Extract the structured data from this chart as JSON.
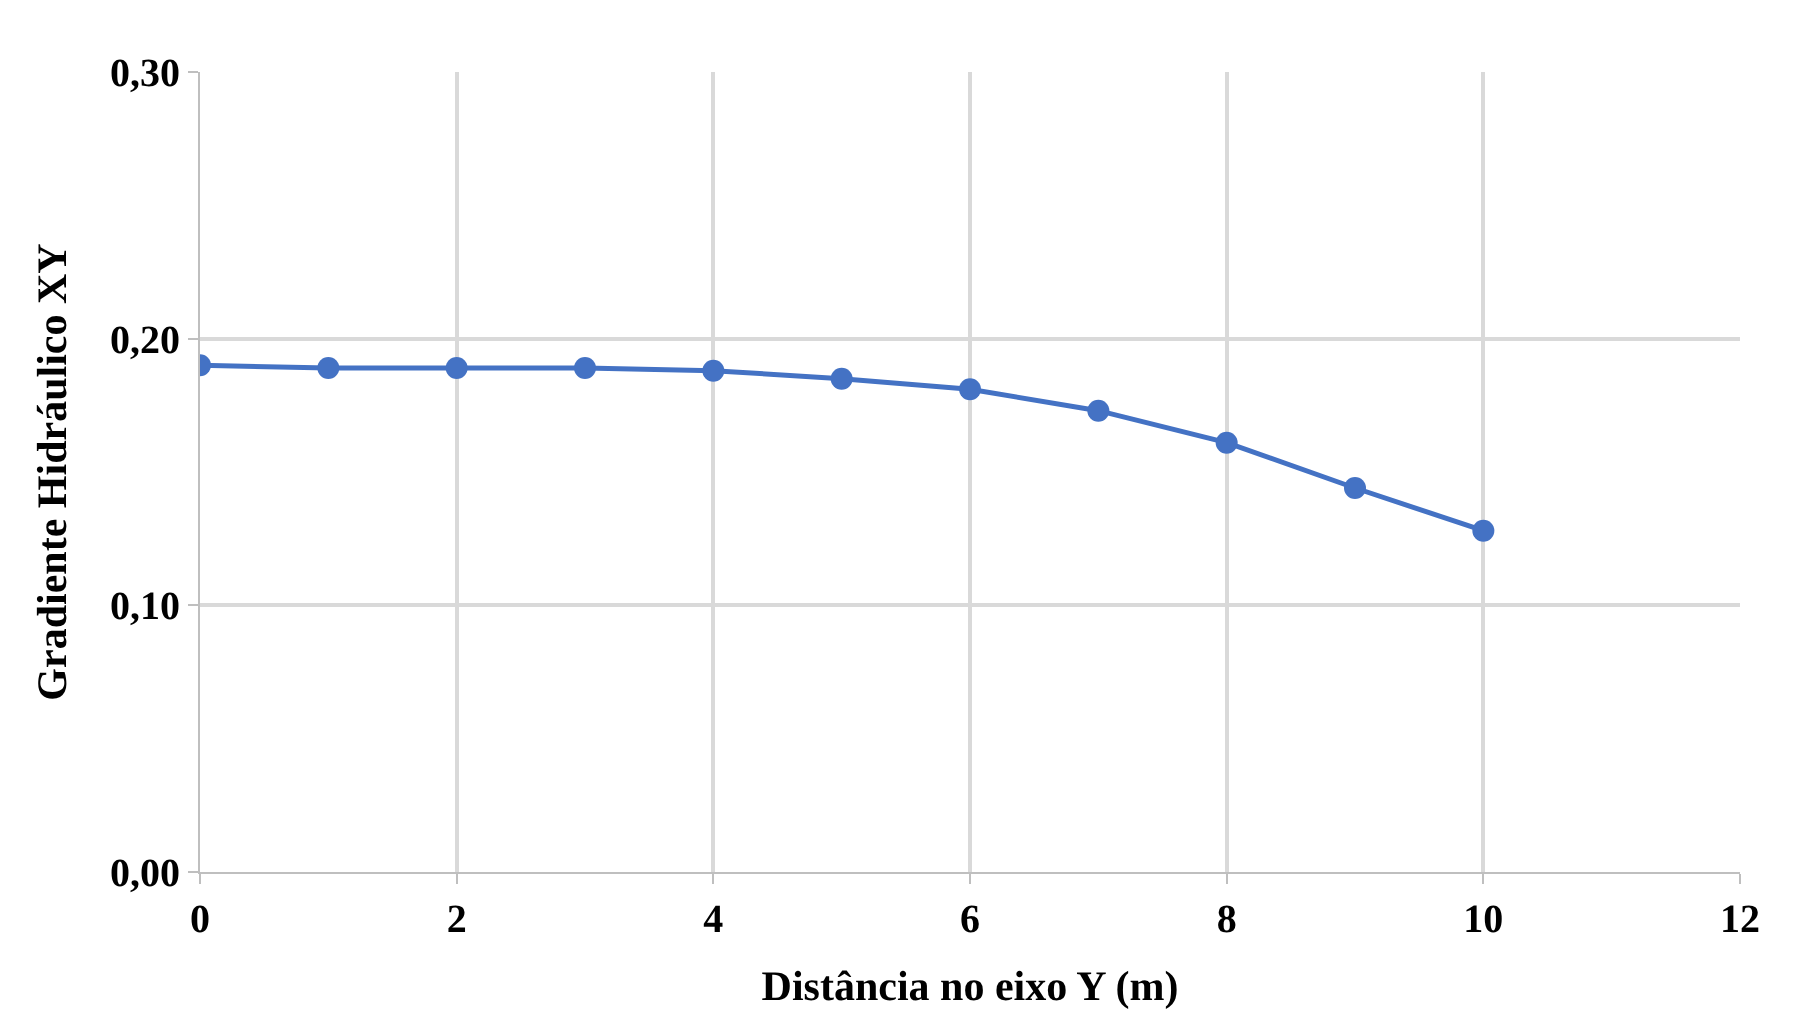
{
  "chart_data": {
    "type": "line",
    "xlabel": "Distância no eixo Y (m)",
    "ylabel": "Gradiente Hidráulico XY",
    "x": [
      0,
      1,
      2,
      3,
      4,
      5,
      6,
      7,
      8,
      9,
      10
    ],
    "series": [
      {
        "color": "#4472c4",
        "values": [
          0.19,
          0.189,
          0.189,
          0.189,
          0.188,
          0.185,
          0.181,
          0.173,
          0.161,
          0.144,
          0.128
        ]
      }
    ],
    "xlim": [
      0,
      12
    ],
    "xticks": [
      0,
      2,
      4,
      6,
      8,
      10,
      12
    ],
    "ylim": [
      0,
      0.3
    ],
    "yticks": [
      {
        "value": 0,
        "label": "0,00"
      },
      {
        "value": 0.1,
        "label": "0,10"
      },
      {
        "value": 0.2,
        "label": "0,20"
      },
      {
        "value": 0.3,
        "label": "0,30"
      }
    ],
    "grid": true,
    "marker": "circle",
    "line_style": "solid"
  }
}
